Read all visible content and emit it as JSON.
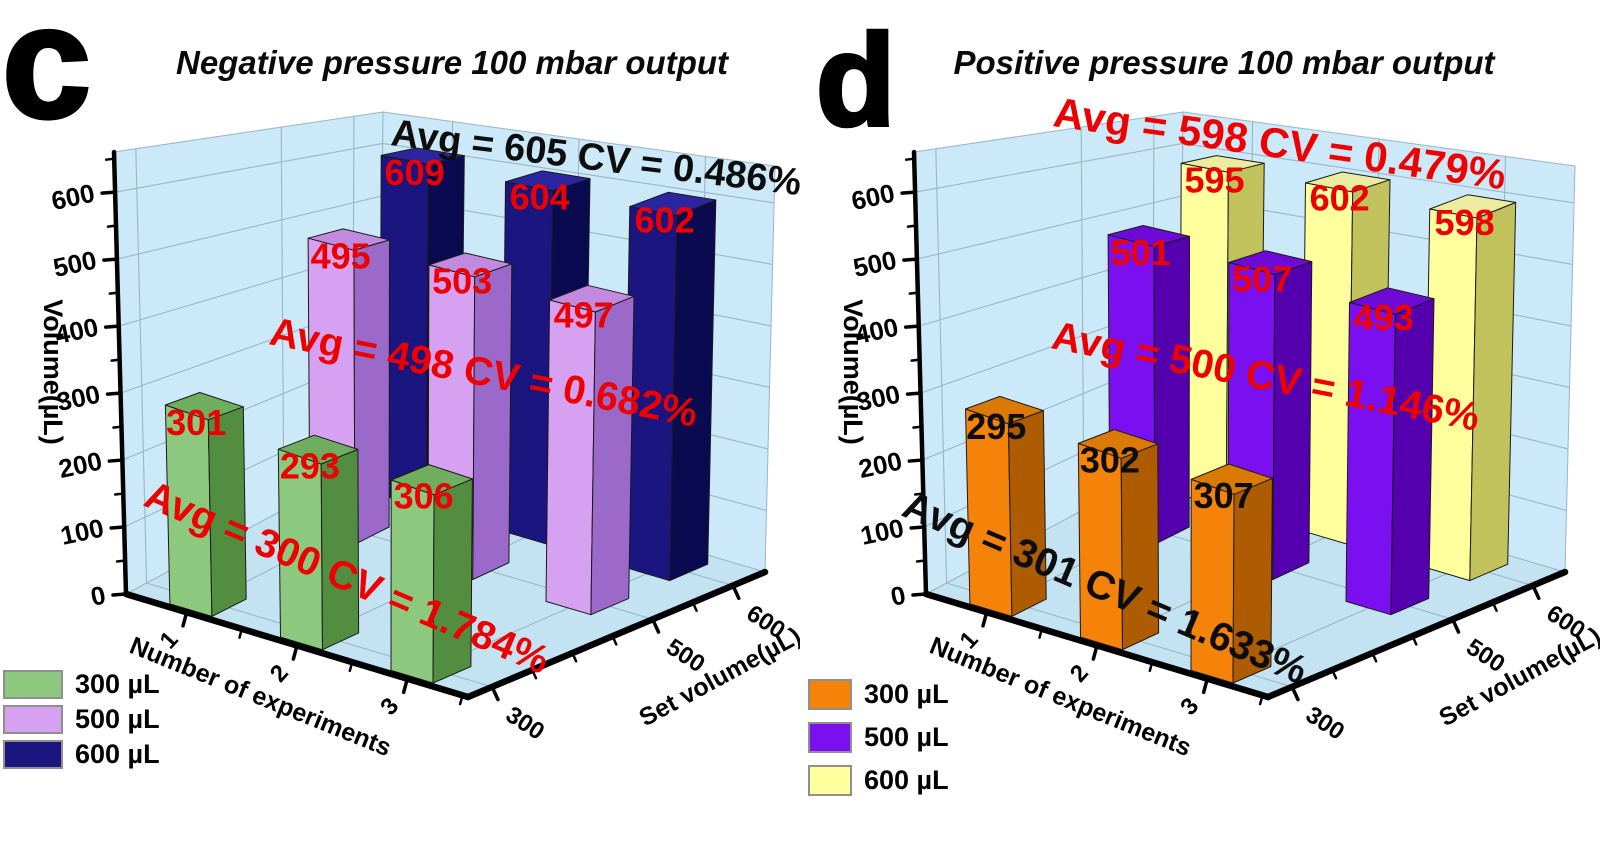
{
  "chart_data": [
    {
      "type": "bar3d",
      "panel_letter": "c",
      "title": "Negative pressure 100 mbar output",
      "xlabel": "Number of experiments",
      "ylabel": "Volume(µL)",
      "zlabel": "Set volume(µL)",
      "x": [
        1,
        2,
        3
      ],
      "ylim": [
        0,
        660
      ],
      "yticks": [
        0,
        100,
        200,
        300,
        400,
        500,
        600
      ],
      "depth_ticks": [
        300,
        500,
        600
      ],
      "grid": true,
      "wall_color": "#cbe9f8",
      "floor_color": "#c3e2f2",
      "grid_color": "#9db4c4",
      "series": [
        {
          "name": "300 µL",
          "set_volume": 300,
          "values": [
            301,
            293,
            306
          ],
          "avg_annotation": "Avg = 300 CV = 1.784%",
          "annotation_color": "#ee0000",
          "value_label_color": "#ee0000",
          "colors": {
            "front": "#8dc87f",
            "side": "#538e40",
            "top": "#6fae5e"
          }
        },
        {
          "name": "500 µL",
          "set_volume": 500,
          "values": [
            495,
            503,
            497
          ],
          "avg_annotation": "Avg = 498 CV = 0.682%",
          "annotation_color": "#ee0000",
          "value_label_color": "#ee0000",
          "colors": {
            "front": "#d7a1f2",
            "side": "#9b69c9",
            "top": "#c18ade"
          }
        },
        {
          "name": "600 µL",
          "set_volume": 600,
          "values": [
            609,
            604,
            602
          ],
          "avg_annotation": "Avg = 605 CV = 0.486%",
          "annotation_color": "#0d0d0d",
          "value_label_color": "#ee0000",
          "colors": {
            "front": "#1b1580",
            "side": "#0a0a50",
            "top": "#2b25a0"
          }
        }
      ]
    },
    {
      "type": "bar3d",
      "panel_letter": "d",
      "title": "Positive pressure 100 mbar output",
      "xlabel": "Number of experiments",
      "ylabel": "Volume(µL)",
      "zlabel": "Set volume(µL)",
      "x": [
        1,
        2,
        3
      ],
      "ylim": [
        0,
        660
      ],
      "yticks": [
        0,
        100,
        200,
        300,
        400,
        500,
        600
      ],
      "depth_ticks": [
        300,
        500,
        600
      ],
      "grid": true,
      "wall_color": "#cbe9f8",
      "floor_color": "#c3e2f2",
      "grid_color": "#9db4c4",
      "series": [
        {
          "name": "300 µL",
          "set_volume": 300,
          "values": [
            295,
            302,
            307
          ],
          "avg_annotation": "Avg = 301 CV = 1.633%",
          "annotation_color": "#0d0d0d",
          "value_label_color": "#0d0d0d",
          "colors": {
            "front": "#f5830a",
            "side": "#ad5c02",
            "top": "#da7a02"
          }
        },
        {
          "name": "500 µL",
          "set_volume": 500,
          "values": [
            501,
            507,
            493
          ],
          "avg_annotation": "Avg = 500 CV = 1.146%",
          "annotation_color": "#ee0000",
          "value_label_color": "#ee0000",
          "colors": {
            "front": "#7a10f0",
            "side": "#5400ae",
            "top": "#6d0ad6"
          }
        },
        {
          "name": "600 µL",
          "set_volume": 600,
          "values": [
            595,
            602,
            598
          ],
          "avg_annotation": "Avg = 598 CV = 0.479%",
          "annotation_color": "#ee0000",
          "value_label_color": "#ee0000",
          "colors": {
            "front": "#ffff9e",
            "side": "#c2c25c",
            "top": "#ececa0"
          }
        }
      ]
    }
  ]
}
